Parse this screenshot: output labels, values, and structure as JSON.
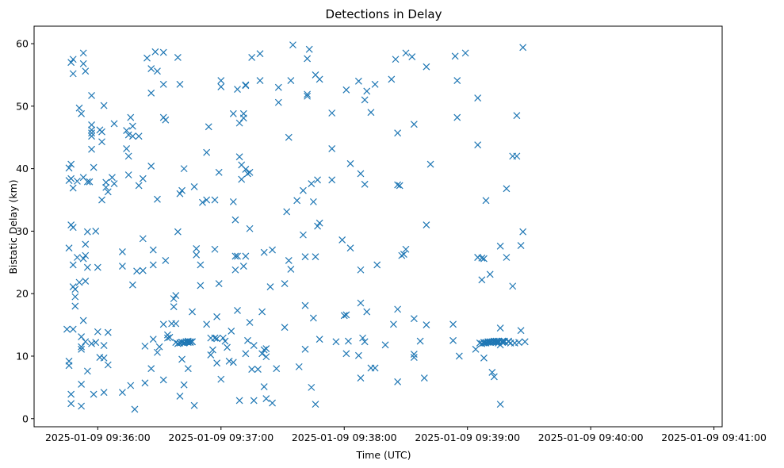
{
  "chart_data": {
    "type": "scatter",
    "title": "Detections in Delay",
    "xlabel": "Time (UTC)",
    "ylabel": "Bistatic Delay (km)",
    "marker": "x",
    "color": "#1f77b4",
    "grid": false,
    "legend": "none",
    "xlim": [
      "2025-01-09 09:35:29",
      "2025-01-09 09:41:04"
    ],
    "ylim": [
      -1.3,
      62.8
    ],
    "x_ticks": [
      {
        "t": "2025-01-09 09:36:00",
        "label": "2025-01-09 09:36:00"
      },
      {
        "t": "2025-01-09 09:37:00",
        "label": "2025-01-09 09:37:00"
      },
      {
        "t": "2025-01-09 09:38:00",
        "label": "2025-01-09 09:38:00"
      },
      {
        "t": "2025-01-09 09:39:00",
        "label": "2025-01-09 09:39:00"
      },
      {
        "t": "2025-01-09 09:40:00",
        "label": "2025-01-09 09:40:00"
      },
      {
        "t": "2025-01-09 09:41:00",
        "label": "2025-01-09 09:41:00"
      }
    ],
    "y_ticks": [
      0,
      10,
      20,
      30,
      40,
      50,
      60
    ],
    "points": [
      [
        "09:35:45",
        14.3
      ],
      [
        "09:35:46",
        27.3
      ],
      [
        "09:35:46",
        40.1
      ],
      [
        "09:35:46",
        9.2
      ],
      [
        "09:35:46",
        8.5
      ],
      [
        "09:35:46",
        38.1
      ],
      [
        "09:35:47",
        3.9
      ],
      [
        "09:35:47",
        2.4
      ],
      [
        "09:35:47",
        31
      ],
      [
        "09:35:47",
        57
      ],
      [
        "09:35:47",
        38.4
      ],
      [
        "09:35:47",
        40.7
      ],
      [
        "09:35:48",
        36.9
      ],
      [
        "09:35:48",
        24.6
      ],
      [
        "09:35:48",
        57.5
      ],
      [
        "09:35:48",
        30.6
      ],
      [
        "09:35:48",
        14.3
      ],
      [
        "09:35:48",
        55.2
      ],
      [
        "09:35:48",
        21.1
      ],
      [
        "09:35:49",
        20.7
      ],
      [
        "09:35:49",
        19.5
      ],
      [
        "09:35:49",
        18
      ],
      [
        "09:35:50",
        38
      ],
      [
        "09:35:50",
        25.8
      ],
      [
        "09:35:51",
        21.8
      ],
      [
        "09:35:51",
        49.7
      ],
      [
        "09:35:52",
        13.1
      ],
      [
        "09:35:52",
        11.5
      ],
      [
        "09:35:52",
        11.1
      ],
      [
        "09:35:52",
        2
      ],
      [
        "09:35:52",
        5.5
      ],
      [
        "09:35:52",
        48.8
      ],
      [
        "09:35:53",
        38.6
      ],
      [
        "09:35:53",
        25.6
      ],
      [
        "09:35:53",
        15.7
      ],
      [
        "09:35:53",
        58.5
      ],
      [
        "09:35:53",
        56.8
      ],
      [
        "09:35:54",
        55.6
      ],
      [
        "09:35:54",
        26.1
      ],
      [
        "09:35:54",
        22
      ],
      [
        "09:35:54",
        27.9
      ],
      [
        "09:35:54",
        12.3
      ],
      [
        "09:35:55",
        37.9
      ],
      [
        "09:35:55",
        29.9
      ],
      [
        "09:35:55",
        24.2
      ],
      [
        "09:35:55",
        7.6
      ],
      [
        "09:35:56",
        37.9
      ],
      [
        "09:35:57",
        51.7
      ],
      [
        "09:35:57",
        47
      ],
      [
        "09:35:57",
        46.2
      ],
      [
        "09:35:57",
        45.7
      ],
      [
        "09:35:57",
        45.2
      ],
      [
        "09:35:57",
        43.1
      ],
      [
        "09:35:57",
        12
      ],
      [
        "09:35:58",
        3.9
      ],
      [
        "09:35:58",
        40.2
      ],
      [
        "09:35:59",
        30
      ],
      [
        "09:35:59",
        12.2
      ],
      [
        "09:36:00",
        24.2
      ],
      [
        "09:36:00",
        13.9
      ],
      [
        "09:36:01",
        9.8
      ],
      [
        "09:36:01",
        46.2
      ],
      [
        "09:36:02",
        35
      ],
      [
        "09:36:02",
        44.3
      ],
      [
        "09:36:02",
        45.9
      ],
      [
        "09:36:03",
        4.2
      ],
      [
        "09:36:03",
        9.7
      ],
      [
        "09:36:03",
        11.7
      ],
      [
        "09:36:03",
        50.1
      ],
      [
        "09:36:04",
        37.8
      ],
      [
        "09:36:04",
        37
      ],
      [
        "09:36:05",
        36.3
      ],
      [
        "09:36:05",
        8.6
      ],
      [
        "09:36:05",
        13.8
      ],
      [
        "09:36:07",
        38.6
      ],
      [
        "09:36:08",
        47.2
      ],
      [
        "09:36:08",
        37.6
      ],
      [
        "09:36:12",
        26.7
      ],
      [
        "09:36:12",
        24.4
      ],
      [
        "09:36:12",
        4.2
      ],
      [
        "09:36:14",
        43.2
      ],
      [
        "09:36:14",
        46.1
      ],
      [
        "09:36:15",
        45.4
      ],
      [
        "09:36:15",
        39
      ],
      [
        "09:36:15",
        42
      ],
      [
        "09:36:16",
        48.2
      ],
      [
        "09:36:16",
        5.3
      ],
      [
        "09:36:17",
        46.8
      ],
      [
        "09:36:17",
        45.2
      ],
      [
        "09:36:17",
        21.4
      ],
      [
        "09:36:18",
        1.5
      ],
      [
        "09:36:19",
        23.6
      ],
      [
        "09:36:20",
        45.2
      ],
      [
        "09:36:20",
        37.3
      ],
      [
        "09:36:22",
        38.4
      ],
      [
        "09:36:22",
        28.8
      ],
      [
        "09:36:22",
        23.7
      ],
      [
        "09:36:23",
        5.7
      ],
      [
        "09:36:23",
        11.6
      ],
      [
        "09:36:24",
        57.7
      ],
      [
        "09:36:26",
        52.1
      ],
      [
        "09:36:26",
        56
      ],
      [
        "09:36:26",
        40.4
      ],
      [
        "09:36:26",
        8
      ],
      [
        "09:36:27",
        27
      ],
      [
        "09:36:27",
        24.6
      ],
      [
        "09:36:27",
        12.7
      ],
      [
        "09:36:28",
        58.7
      ],
      [
        "09:36:29",
        55.6
      ],
      [
        "09:36:29",
        35.1
      ],
      [
        "09:36:29",
        10.6
      ],
      [
        "09:36:30",
        11.5
      ],
      [
        "09:36:32",
        58.6
      ],
      [
        "09:36:32",
        53.5
      ],
      [
        "09:36:32",
        48.2
      ],
      [
        "09:36:32",
        15.1
      ],
      [
        "09:36:32",
        6.2
      ],
      [
        "09:36:33",
        47.8
      ],
      [
        "09:36:33",
        25.3
      ],
      [
        "09:36:34",
        13.4
      ],
      [
        "09:36:34",
        12.9
      ],
      [
        "09:36:35",
        13
      ],
      [
        "09:36:36",
        15.2
      ],
      [
        "09:36:37",
        17.9
      ],
      [
        "09:36:37",
        19.2
      ],
      [
        "09:36:38",
        19.7
      ],
      [
        "09:36:38",
        15.2
      ],
      [
        "09:36:38",
        12.2
      ],
      [
        "09:36:39",
        57.8
      ],
      [
        "09:36:39",
        29.9
      ],
      [
        "09:36:39",
        12
      ],
      [
        "09:36:40",
        53.5
      ],
      [
        "09:36:40",
        36
      ],
      [
        "09:36:40",
        12.1
      ],
      [
        "09:36:40",
        3.6
      ],
      [
        "09:36:41",
        36.5
      ],
      [
        "09:36:41",
        12.2
      ],
      [
        "09:36:41",
        12.2
      ],
      [
        "09:36:41",
        9.5
      ],
      [
        "09:36:42",
        12.1
      ],
      [
        "09:36:42",
        12.2
      ],
      [
        "09:36:42",
        5.4
      ],
      [
        "09:36:42",
        40
      ],
      [
        "09:36:43",
        12.3
      ],
      [
        "09:36:43",
        12.3
      ],
      [
        "09:36:44",
        12.2
      ],
      [
        "09:36:44",
        12.4
      ],
      [
        "09:36:44",
        8
      ],
      [
        "09:36:45",
        12.3
      ],
      [
        "09:36:45",
        12.2
      ],
      [
        "09:36:46",
        12.3
      ],
      [
        "09:36:46",
        12.3
      ],
      [
        "09:36:46",
        17.1
      ],
      [
        "09:36:47",
        2.1
      ],
      [
        "09:36:47",
        37.1
      ],
      [
        "09:36:48",
        27.2
      ],
      [
        "09:36:48",
        26.2
      ],
      [
        "09:36:50",
        24.6
      ],
      [
        "09:36:50",
        21.3
      ],
      [
        "09:36:51",
        34.6
      ],
      [
        "09:36:53",
        42.6
      ],
      [
        "09:36:53",
        35
      ],
      [
        "09:36:53",
        15.1
      ],
      [
        "09:36:54",
        46.7
      ],
      [
        "09:36:55",
        10.2
      ],
      [
        "09:36:55",
        12.9
      ],
      [
        "09:36:56",
        11
      ],
      [
        "09:36:57",
        12.9
      ],
      [
        "09:36:57",
        35
      ],
      [
        "09:36:57",
        27.1
      ],
      [
        "09:36:57",
        12.9
      ],
      [
        "09:36:58",
        12.8
      ],
      [
        "09:36:58",
        16.3
      ],
      [
        "09:36:58",
        8.9
      ],
      [
        "09:36:59",
        39.4
      ],
      [
        "09:36:59",
        21.6
      ],
      [
        "09:37:00",
        6.3
      ],
      [
        "09:37:00",
        53.1
      ],
      [
        "09:37:00",
        54.1
      ],
      [
        "09:37:01",
        12.9
      ],
      [
        "09:37:02",
        12.4
      ],
      [
        "09:37:03",
        11.4
      ],
      [
        "09:37:04",
        9.2
      ],
      [
        "09:37:05",
        14
      ],
      [
        "09:37:06",
        9
      ],
      [
        "09:37:06",
        48.8
      ],
      [
        "09:37:06",
        34.7
      ],
      [
        "09:37:07",
        26
      ],
      [
        "09:37:07",
        23.8
      ],
      [
        "09:37:07",
        31.8
      ],
      [
        "09:37:08",
        26
      ],
      [
        "09:37:08",
        52.7
      ],
      [
        "09:37:08",
        17.3
      ],
      [
        "09:37:09",
        41.9
      ],
      [
        "09:37:09",
        47.3
      ],
      [
        "09:37:09",
        2.9
      ],
      [
        "09:37:10",
        38.3
      ],
      [
        "09:37:10",
        40.6
      ],
      [
        "09:37:11",
        48.1
      ],
      [
        "09:37:11",
        48.8
      ],
      [
        "09:37:11",
        24.4
      ],
      [
        "09:37:12",
        39.9
      ],
      [
        "09:37:12",
        53.3
      ],
      [
        "09:37:12",
        53.4
      ],
      [
        "09:37:12",
        26
      ],
      [
        "09:37:12",
        10.4
      ],
      [
        "09:37:13",
        12.5
      ],
      [
        "09:37:13",
        39.2
      ],
      [
        "09:37:14",
        15.4
      ],
      [
        "09:37:14",
        39.4
      ],
      [
        "09:37:14",
        30.4
      ],
      [
        "09:37:15",
        57.8
      ],
      [
        "09:37:15",
        7.9
      ],
      [
        "09:37:16",
        11.7
      ],
      [
        "09:37:16",
        2.9
      ],
      [
        "09:37:18",
        7.9
      ],
      [
        "09:37:19",
        54.1
      ],
      [
        "09:37:19",
        58.4
      ],
      [
        "09:37:20",
        17.1
      ],
      [
        "09:37:20",
        10.4
      ],
      [
        "09:37:21",
        11
      ],
      [
        "09:37:21",
        26.6
      ],
      [
        "09:37:21",
        5.1
      ],
      [
        "09:37:22",
        9.9
      ],
      [
        "09:37:22",
        11.2
      ],
      [
        "09:37:22",
        3.2
      ],
      [
        "09:37:24",
        21.1
      ],
      [
        "09:37:25",
        27
      ],
      [
        "09:37:25",
        2.5
      ],
      [
        "09:37:27",
        8
      ],
      [
        "09:37:28",
        53
      ],
      [
        "09:37:28",
        50.6
      ],
      [
        "09:37:31",
        21.6
      ],
      [
        "09:37:31",
        14.6
      ],
      [
        "09:37:32",
        33.1
      ],
      [
        "09:37:33",
        45
      ],
      [
        "09:37:33",
        25.3
      ],
      [
        "09:37:34",
        23.9
      ],
      [
        "09:37:34",
        54.1
      ],
      [
        "09:37:35",
        59.8
      ],
      [
        "09:37:37",
        34.9
      ],
      [
        "09:37:38",
        8.3
      ],
      [
        "09:37:40",
        36.5
      ],
      [
        "09:37:40",
        29.4
      ],
      [
        "09:37:41",
        25.9
      ],
      [
        "09:37:41",
        18.1
      ],
      [
        "09:37:41",
        11.1
      ],
      [
        "09:37:42",
        51.9
      ],
      [
        "09:37:42",
        51.6
      ],
      [
        "09:37:42",
        57.6
      ],
      [
        "09:37:43",
        59.1
      ],
      [
        "09:37:44",
        37.6
      ],
      [
        "09:37:44",
        5
      ],
      [
        "09:37:45",
        16.1
      ],
      [
        "09:37:45",
        34.7
      ],
      [
        "09:37:46",
        55
      ],
      [
        "09:37:46",
        25.9
      ],
      [
        "09:37:46",
        2.3
      ],
      [
        "09:37:47",
        30.8
      ],
      [
        "09:37:47",
        38.2
      ],
      [
        "09:37:48",
        31.3
      ],
      [
        "09:37:48",
        54.3
      ],
      [
        "09:37:48",
        12.7
      ],
      [
        "09:37:54",
        43.2
      ],
      [
        "09:37:54",
        38.2
      ],
      [
        "09:37:54",
        48.9
      ],
      [
        "09:37:56",
        12.3
      ],
      [
        "09:37:59",
        28.6
      ],
      [
        "09:38:00",
        16.5
      ],
      [
        "09:38:01",
        10.4
      ],
      [
        "09:38:01",
        52.6
      ],
      [
        "09:38:01",
        16.6
      ],
      [
        "09:38:02",
        12.4
      ],
      [
        "09:38:03",
        40.8
      ],
      [
        "09:38:03",
        27.3
      ],
      [
        "09:38:07",
        54
      ],
      [
        "09:38:07",
        10.1
      ],
      [
        "09:38:08",
        39.2
      ],
      [
        "09:38:08",
        23.8
      ],
      [
        "09:38:08",
        6.5
      ],
      [
        "09:38:08",
        18.5
      ],
      [
        "09:38:09",
        12.9
      ],
      [
        "09:38:10",
        51
      ],
      [
        "09:38:10",
        37.5
      ],
      [
        "09:38:10",
        12.3
      ],
      [
        "09:38:11",
        17.1
      ],
      [
        "09:38:11",
        52.4
      ],
      [
        "09:38:13",
        49
      ],
      [
        "09:38:13",
        8.1
      ],
      [
        "09:38:15",
        8.1
      ],
      [
        "09:38:15",
        53.5
      ],
      [
        "09:38:16",
        24.6
      ],
      [
        "09:38:20",
        11.8
      ],
      [
        "09:38:23",
        54.3
      ],
      [
        "09:38:24",
        15.1
      ],
      [
        "09:38:25",
        57.5
      ],
      [
        "09:38:26",
        17.5
      ],
      [
        "09:38:26",
        37.4
      ],
      [
        "09:38:26",
        5.9
      ],
      [
        "09:38:26",
        45.7
      ],
      [
        "09:38:27",
        37.3
      ],
      [
        "09:38:28",
        26.1
      ],
      [
        "09:38:29",
        26.3
      ],
      [
        "09:38:30",
        27.1
      ],
      [
        "09:38:30",
        58.5
      ],
      [
        "09:38:33",
        57.9
      ],
      [
        "09:38:34",
        9.8
      ],
      [
        "09:38:34",
        10.3
      ],
      [
        "09:38:34",
        47.1
      ],
      [
        "09:38:34",
        16
      ],
      [
        "09:38:37",
        12.4
      ],
      [
        "09:38:39",
        6.5
      ],
      [
        "09:38:40",
        31
      ],
      [
        "09:38:40",
        56.3
      ],
      [
        "09:38:40",
        15
      ],
      [
        "09:38:42",
        40.7
      ],
      [
        "09:38:53",
        15.1
      ],
      [
        "09:38:53",
        12.5
      ],
      [
        "09:38:54",
        58
      ],
      [
        "09:38:55",
        54.1
      ],
      [
        "09:38:55",
        48.2
      ],
      [
        "09:38:56",
        10
      ],
      [
        "09:38:59",
        58.5
      ],
      [
        "09:39:04",
        11.1
      ],
      [
        "09:39:05",
        25.8
      ],
      [
        "09:39:05",
        25.8
      ],
      [
        "09:39:05",
        51.3
      ],
      [
        "09:39:05",
        43.8
      ],
      [
        "09:39:06",
        12.1
      ],
      [
        "09:39:07",
        22.2
      ],
      [
        "09:39:07",
        12
      ],
      [
        "09:39:07",
        25.7
      ],
      [
        "09:39:08",
        12.1
      ],
      [
        "09:39:08",
        12.2
      ],
      [
        "09:39:08",
        25.6
      ],
      [
        "09:39:08",
        9.7
      ],
      [
        "09:39:09",
        12.2
      ],
      [
        "09:39:09",
        12.1
      ],
      [
        "09:39:09",
        34.9
      ],
      [
        "09:39:10",
        12.3
      ],
      [
        "09:39:10",
        12.2
      ],
      [
        "09:39:11",
        12.3
      ],
      [
        "09:39:11",
        12.2
      ],
      [
        "09:39:11",
        23.1
      ],
      [
        "09:39:12",
        12.3
      ],
      [
        "09:39:12",
        7.4
      ],
      [
        "09:39:13",
        12.4
      ],
      [
        "09:39:13",
        12.3
      ],
      [
        "09:39:13",
        6.7
      ],
      [
        "09:39:14",
        12.2
      ],
      [
        "09:39:14",
        12.4
      ],
      [
        "09:39:15",
        12.3
      ],
      [
        "09:39:15",
        12.1
      ],
      [
        "09:39:15",
        12.4
      ],
      [
        "09:39:16",
        2.3
      ],
      [
        "09:39:16",
        27.6
      ],
      [
        "09:39:16",
        14.5
      ],
      [
        "09:39:16",
        11.8
      ],
      [
        "09:39:17",
        12.2
      ],
      [
        "09:39:17",
        12.4
      ],
      [
        "09:39:18",
        12.3
      ],
      [
        "09:39:18",
        12.4
      ],
      [
        "09:39:19",
        25.8
      ],
      [
        "09:39:19",
        36.8
      ],
      [
        "09:39:20",
        12.4
      ],
      [
        "09:39:20",
        12.3
      ],
      [
        "09:39:21",
        12.1
      ],
      [
        "09:39:22",
        42
      ],
      [
        "09:39:22",
        21.2
      ],
      [
        "09:39:23",
        12.1
      ],
      [
        "09:39:24",
        42
      ],
      [
        "09:39:24",
        48.5
      ],
      [
        "09:39:25",
        12.2
      ],
      [
        "09:39:26",
        27.7
      ],
      [
        "09:39:26",
        14.1
      ],
      [
        "09:39:27",
        59.4
      ],
      [
        "09:39:27",
        29.9
      ],
      [
        "09:39:28",
        12.3
      ]
    ]
  }
}
